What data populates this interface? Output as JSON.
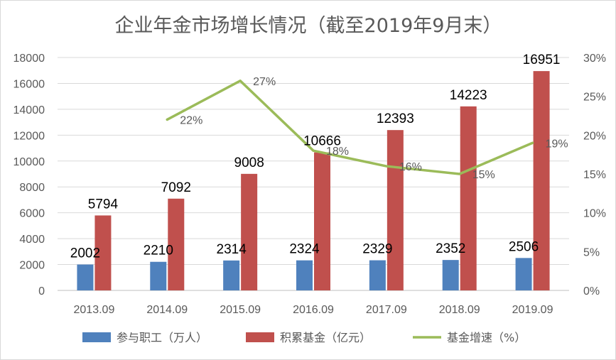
{
  "chart_data": {
    "type": "bar",
    "title": "企业年金市场增长情况（截至2019年9月末）",
    "categories": [
      "2013.09",
      "2014.09",
      "2015.09",
      "2016.09",
      "2017.09",
      "2018.09",
      "2019.09"
    ],
    "series": [
      {
        "name": "参与职工（万人）",
        "type": "bar",
        "axis": "left",
        "color": "#4f81bd",
        "values": [
          2002,
          2210,
          2314,
          2324,
          2329,
          2352,
          2506
        ],
        "labels": [
          "2002",
          "2210",
          "2314",
          "2324",
          "2329",
          "2352",
          "2506"
        ]
      },
      {
        "name": "积累基金（亿元）",
        "type": "bar",
        "axis": "left",
        "color": "#c0504d",
        "values": [
          5794,
          7092,
          9008,
          10666,
          12393,
          14223,
          16951
        ],
        "labels": [
          "5794",
          "7092",
          "9008",
          "10666",
          "12393",
          "14223",
          "16951"
        ]
      },
      {
        "name": "基金增速（%）",
        "type": "line",
        "axis": "right",
        "color": "#9bbb59",
        "values": [
          null,
          22,
          27,
          18,
          16,
          15,
          19
        ],
        "labels": [
          "",
          "22%",
          "27%",
          "18%",
          "16%",
          "15%",
          "19%"
        ]
      }
    ],
    "y_left": {
      "ylim": [
        0,
        18000
      ],
      "ticks": [
        0,
        2000,
        4000,
        6000,
        8000,
        10000,
        12000,
        14000,
        16000,
        18000
      ],
      "tick_labels": [
        "0",
        "2000",
        "4000",
        "6000",
        "8000",
        "10000",
        "12000",
        "14000",
        "16000",
        "18000"
      ]
    },
    "y_right": {
      "ylim": [
        0,
        30
      ],
      "ticks": [
        0,
        5,
        10,
        15,
        20,
        25,
        30
      ],
      "tick_labels": [
        "0%",
        "5%",
        "10%",
        "15%",
        "20%",
        "25%",
        "30%"
      ]
    },
    "grid": true,
    "legend": "bottom"
  }
}
